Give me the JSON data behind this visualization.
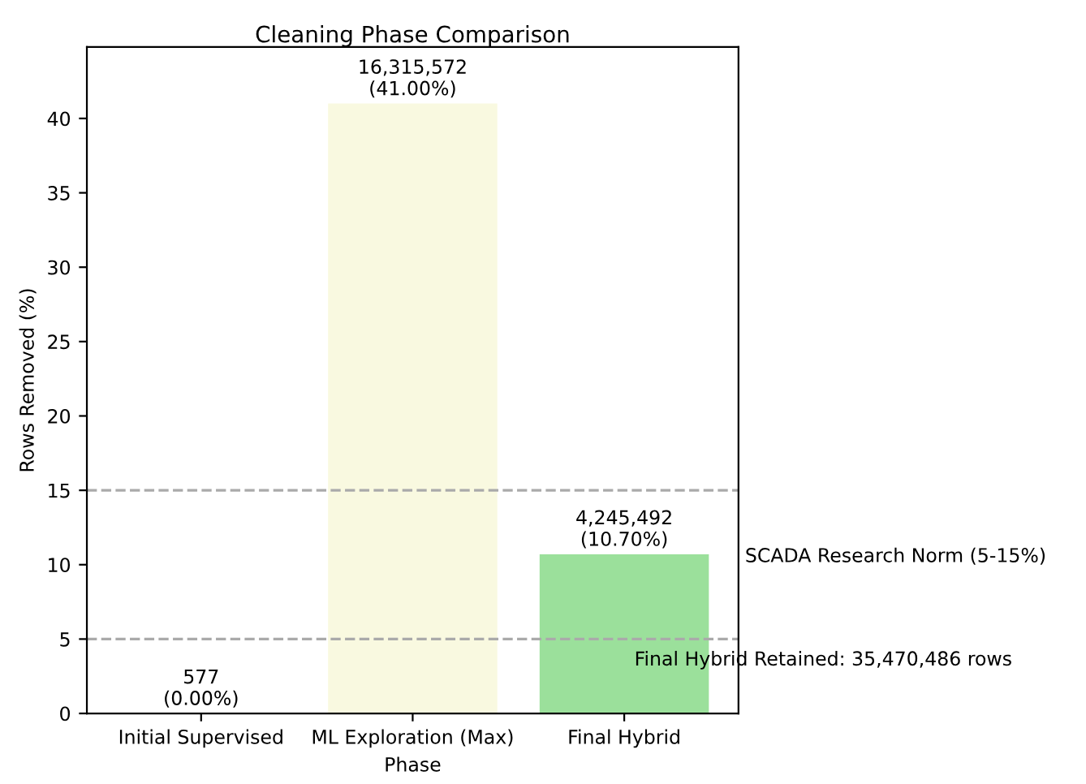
{
  "chart_data": {
    "type": "bar",
    "title": "Cleaning Phase Comparison",
    "xlabel": "Phase",
    "ylabel": "Rows Removed (%)",
    "categories": [
      "Initial Supervised",
      "ML Exploration (Max)",
      "Final Hybrid"
    ],
    "values": [
      0.0,
      41.0,
      10.7
    ],
    "colors": [
      "#aec7e8",
      "#f9f9e0",
      "#9be09b"
    ],
    "value_labels": [
      "577\n(0.00%)",
      "16,315,572\n(41.00%)",
      "4,245,492\n(10.70%)"
    ],
    "ylim": [
      0,
      44.8
    ],
    "yticks": [
      0,
      5,
      10,
      15,
      20,
      25,
      30,
      35,
      40
    ],
    "ref_lines": [
      {
        "axis": "y",
        "value": 5,
        "color": "#aaaaaa",
        "line_style": "dashed"
      },
      {
        "axis": "y",
        "value": 15,
        "color": "#aaaaaa",
        "line_style": "dashed"
      }
    ],
    "annotations": [
      "SCADA Research Norm (5-15%)",
      "Final Hybrid Retained: 35,470,486 rows"
    ],
    "grid": false,
    "legend": false
  }
}
